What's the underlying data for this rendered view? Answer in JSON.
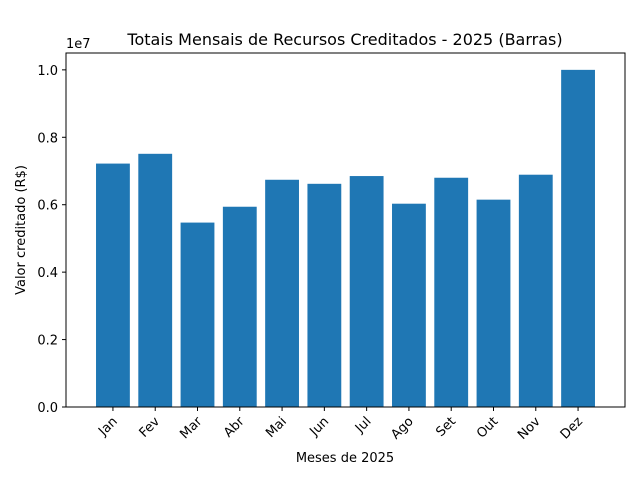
{
  "chart_data": {
    "type": "bar",
    "title": "Totais Mensais de Recursos Creditados - 2025 (Barras)",
    "xlabel": "Meses de 2025",
    "ylabel": "Valor creditado (R$)",
    "y_offset_label": "1e7",
    "categories": [
      "Jan",
      "Fev",
      "Mar",
      "Abr",
      "Mai",
      "Jun",
      "Jul",
      "Ago",
      "Set",
      "Out",
      "Nov",
      "Dez"
    ],
    "values": [
      7220000,
      7510000,
      5470000,
      5940000,
      6740000,
      6620000,
      6850000,
      6030000,
      6800000,
      6150000,
      6890000,
      10000000
    ],
    "ylim": [
      0,
      10500000
    ],
    "yticks": [
      0,
      2000000,
      4000000,
      6000000,
      8000000,
      10000000
    ],
    "ytick_labels": [
      "0.0",
      "0.2",
      "0.4",
      "0.6",
      "0.8",
      "1.0"
    ],
    "bar_color": "#1f77b4",
    "grid": false,
    "legend": "none"
  }
}
